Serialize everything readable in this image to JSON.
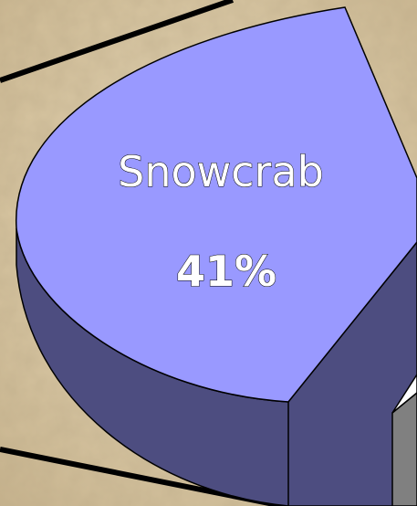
{
  "chart_data": {
    "type": "pie",
    "categories": [
      "Snowcrab"
    ],
    "values": [
      41
    ],
    "value_labels": [
      "41%"
    ],
    "colors": [
      "#9999ff"
    ],
    "side_colors": [
      "#4d4d80"
    ]
  }
}
